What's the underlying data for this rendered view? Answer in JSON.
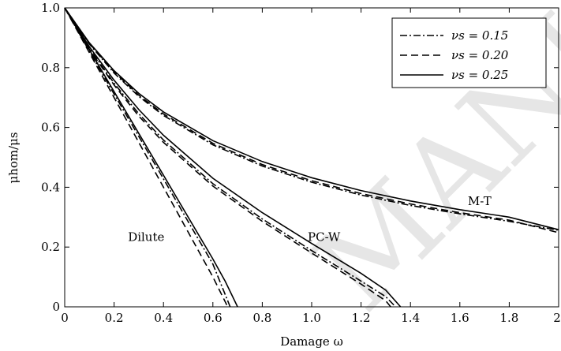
{
  "watermark": "MANUSCRIPT",
  "chart_data": {
    "type": "line",
    "xlabel": "Damage ω",
    "ylabel": "μhom/μs",
    "xlim": [
      0,
      2
    ],
    "ylim": [
      0,
      1
    ],
    "xticks": [
      "0",
      "0.2",
      "0.4",
      "0.6",
      "0.8",
      "1.0",
      "1.2",
      "1.4",
      "1.6",
      "1.8",
      "2"
    ],
    "xtick_values": [
      0,
      0.2,
      0.4,
      0.6,
      0.8,
      1.0,
      1.2,
      1.4,
      1.6,
      1.8,
      2
    ],
    "yticks": [
      "0",
      "0.2",
      "0.4",
      "0.6",
      "0.8",
      "1.0"
    ],
    "ytick_values": [
      0,
      0.2,
      0.4,
      0.6,
      0.8,
      1.0
    ],
    "grid": false,
    "legend_position": "top-right",
    "legend": [
      {
        "label": "νs = 0.15",
        "style": "dashdot"
      },
      {
        "label": "νs = 0.20",
        "style": "dashed"
      },
      {
        "label": "νs = 0.25",
        "style": "solid"
      }
    ],
    "annotations": [
      {
        "text": "Dilute",
        "x": 0.33,
        "y": 0.22
      },
      {
        "text": "PC-W",
        "x": 1.05,
        "y": 0.22
      },
      {
        "text": "M-T",
        "x": 1.68,
        "y": 0.34
      }
    ],
    "series": [
      {
        "model": "M-T",
        "style": "dashdot",
        "x": [
          0,
          0.1,
          0.2,
          0.3,
          0.4,
          0.6,
          0.8,
          1.0,
          1.2,
          1.4,
          1.6,
          1.8,
          2.0
        ],
        "y": [
          1.0,
          0.879,
          0.782,
          0.704,
          0.64,
          0.542,
          0.471,
          0.417,
          0.374,
          0.339,
          0.311,
          0.286,
          0.256
        ]
      },
      {
        "model": "M-T",
        "style": "dashed",
        "x": [
          0,
          0.1,
          0.2,
          0.3,
          0.4,
          0.6,
          0.8,
          1.0,
          1.2,
          1.4,
          1.6,
          1.8,
          2.0
        ],
        "y": [
          1.0,
          0.881,
          0.786,
          0.708,
          0.645,
          0.547,
          0.476,
          0.422,
          0.379,
          0.344,
          0.315,
          0.29,
          0.248
        ]
      },
      {
        "model": "M-T",
        "style": "solid",
        "x": [
          0,
          0.1,
          0.2,
          0.3,
          0.4,
          0.6,
          0.8,
          1.0,
          1.2,
          1.4,
          1.6,
          1.8,
          2.0
        ],
        "y": [
          1.0,
          0.883,
          0.79,
          0.714,
          0.652,
          0.556,
          0.486,
          0.432,
          0.389,
          0.354,
          0.325,
          0.3,
          0.258
        ]
      },
      {
        "model": "PC-W",
        "style": "dashdot",
        "x": [
          0,
          0.1,
          0.2,
          0.3,
          0.4,
          0.6,
          0.8,
          1.0,
          1.2,
          1.3,
          1.34
        ],
        "y": [
          1.0,
          0.865,
          0.748,
          0.646,
          0.558,
          0.412,
          0.294,
          0.188,
          0.086,
          0.034,
          0
        ]
      },
      {
        "model": "PC-W",
        "style": "dashed",
        "x": [
          0,
          0.1,
          0.2,
          0.3,
          0.4,
          0.6,
          0.8,
          1.0,
          1.2,
          1.3,
          1.32
        ],
        "y": [
          1.0,
          0.862,
          0.742,
          0.638,
          0.55,
          0.404,
          0.286,
          0.18,
          0.076,
          0.02,
          0
        ]
      },
      {
        "model": "PC-W",
        "style": "solid",
        "x": [
          0,
          0.1,
          0.2,
          0.3,
          0.4,
          0.6,
          0.8,
          1.0,
          1.2,
          1.3,
          1.36
        ],
        "y": [
          1.0,
          0.87,
          0.758,
          0.66,
          0.574,
          0.43,
          0.315,
          0.212,
          0.112,
          0.056,
          0
        ]
      },
      {
        "model": "Dilute",
        "style": "dashdot",
        "x": [
          0,
          0.1,
          0.2,
          0.3,
          0.4,
          0.5,
          0.6,
          0.67
        ],
        "y": [
          1.0,
          0.855,
          0.712,
          0.57,
          0.428,
          0.285,
          0.143,
          0
        ]
      },
      {
        "model": "Dilute",
        "style": "dashed",
        "x": [
          0,
          0.1,
          0.2,
          0.3,
          0.4,
          0.5,
          0.6,
          0.66
        ],
        "y": [
          1.0,
          0.85,
          0.7,
          0.55,
          0.4,
          0.25,
          0.1,
          0
        ]
      },
      {
        "model": "Dilute",
        "style": "solid",
        "x": [
          0,
          0.1,
          0.2,
          0.3,
          0.4,
          0.5,
          0.6,
          0.65,
          0.7
        ],
        "y": [
          1.0,
          0.86,
          0.72,
          0.58,
          0.44,
          0.3,
          0.16,
          0.085,
          0
        ]
      }
    ]
  }
}
